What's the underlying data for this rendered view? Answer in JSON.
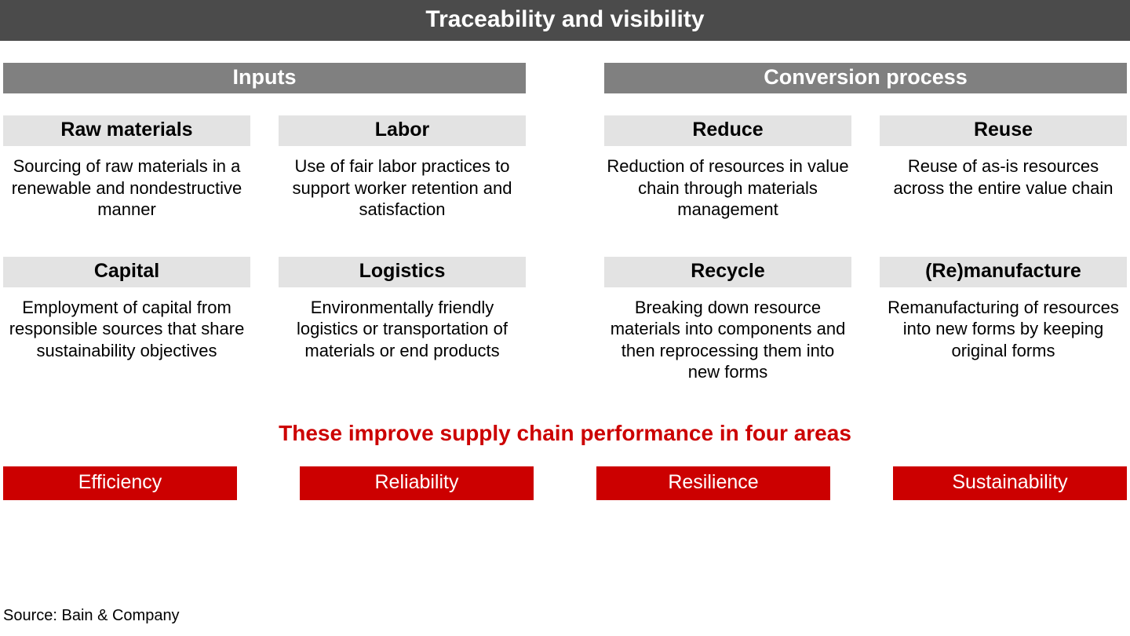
{
  "colors": {
    "header_bg": "#4b4b4b",
    "section_bg": "#808080",
    "card_title_bg": "#e3e3e3",
    "accent_red": "#cc0000",
    "text_black": "#000000",
    "text_white": "#ffffff",
    "page_bg": "#ffffff"
  },
  "typography": {
    "header_fontsize": 30,
    "section_fontsize": 27,
    "card_title_fontsize": 25,
    "card_desc_fontsize": 22,
    "improve_fontsize": 28,
    "outcome_fontsize": 25,
    "source_fontsize": 20
  },
  "header": {
    "title": "Traceability and visibility"
  },
  "sections": [
    {
      "title": "Inputs",
      "cards": [
        {
          "title": "Raw materials",
          "desc": "Sourcing of raw materials in a renewable and nondestructive manner"
        },
        {
          "title": "Labor",
          "desc": "Use of fair labor practices to support worker retention and satisfaction"
        },
        {
          "title": "Capital",
          "desc": "Employment of capital from responsible sources that share sustainability objectives"
        },
        {
          "title": "Logistics",
          "desc": "Environmentally friendly logistics or transportation of materials or end products"
        }
      ]
    },
    {
      "title": "Conversion process",
      "cards": [
        {
          "title": "Reduce",
          "desc": "Reduction of resources in value chain through materials management"
        },
        {
          "title": "Reuse",
          "desc": "Reuse of as-is resources across the entire value chain"
        },
        {
          "title": "Recycle",
          "desc": "Breaking down resource materials into components and then reprocessing them into new forms"
        },
        {
          "title": "(Re)manufacture",
          "desc": "Remanufacturing of resources into new forms by keeping original forms"
        }
      ]
    }
  ],
  "improve_line": "These improve supply chain performance in four areas",
  "outcomes": [
    "Efficiency",
    "Reliability",
    "Resilience",
    "Sustainability"
  ],
  "source": "Source: Bain & Company"
}
